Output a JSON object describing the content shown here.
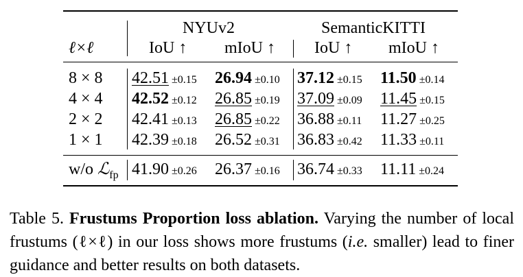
{
  "table": {
    "corner_label": "ℓ×ℓ",
    "groups": [
      "NYUv2",
      "SemanticKITTI"
    ],
    "metrics": [
      "IoU ↑",
      "mIoU ↑",
      "IoU ↑",
      "mIoU ↑"
    ],
    "rows": [
      {
        "label": "8 × 8",
        "cells": [
          {
            "v": "42.51",
            "s": "±0.15",
            "fmt": "second"
          },
          {
            "v": "26.94",
            "s": "±0.10",
            "fmt": "best"
          },
          {
            "v": "37.12",
            "s": "±0.15",
            "fmt": "best"
          },
          {
            "v": "11.50",
            "s": "±0.14",
            "fmt": "best"
          }
        ]
      },
      {
        "label": "4 × 4",
        "cells": [
          {
            "v": "42.52",
            "s": "±0.12",
            "fmt": "best"
          },
          {
            "v": "26.85",
            "s": "±0.19",
            "fmt": "second"
          },
          {
            "v": "37.09",
            "s": "±0.09",
            "fmt": "second"
          },
          {
            "v": "11.45",
            "s": "±0.15",
            "fmt": "second"
          }
        ]
      },
      {
        "label": "2 × 2",
        "cells": [
          {
            "v": "42.41",
            "s": "±0.13",
            "fmt": "plain"
          },
          {
            "v": "26.85",
            "s": "±0.22",
            "fmt": "second"
          },
          {
            "v": "36.88",
            "s": "±0.11",
            "fmt": "plain"
          },
          {
            "v": "11.27",
            "s": "±0.25",
            "fmt": "plain"
          }
        ]
      },
      {
        "label": "1 × 1",
        "cells": [
          {
            "v": "42.39",
            "s": "±0.18",
            "fmt": "plain"
          },
          {
            "v": "26.52",
            "s": "±0.31",
            "fmt": "plain"
          },
          {
            "v": "36.83",
            "s": "±0.42",
            "fmt": "plain"
          },
          {
            "v": "11.33",
            "s": "±0.11",
            "fmt": "plain"
          }
        ]
      }
    ],
    "ablation_row": {
      "label_prefix": "w/o ",
      "label_symbol": "ℒ",
      "label_sub": "fp",
      "cells": [
        {
          "v": "41.90",
          "s": "±0.26",
          "fmt": "plain"
        },
        {
          "v": "26.37",
          "s": "±0.16",
          "fmt": "plain"
        },
        {
          "v": "36.74",
          "s": "±0.33",
          "fmt": "plain"
        },
        {
          "v": "11.11",
          "s": "±0.24",
          "fmt": "plain"
        }
      ]
    }
  },
  "caption": {
    "number": "Table 5.",
    "title": "Frustums Proportion loss ablation.",
    "text_before": "Varying the number of local frustums (ℓ×ℓ) in our loss shows more frustums (",
    "text_ie": "i.e.",
    "text_after": " smaller) lead to finer guidance and better results on both datasets."
  }
}
